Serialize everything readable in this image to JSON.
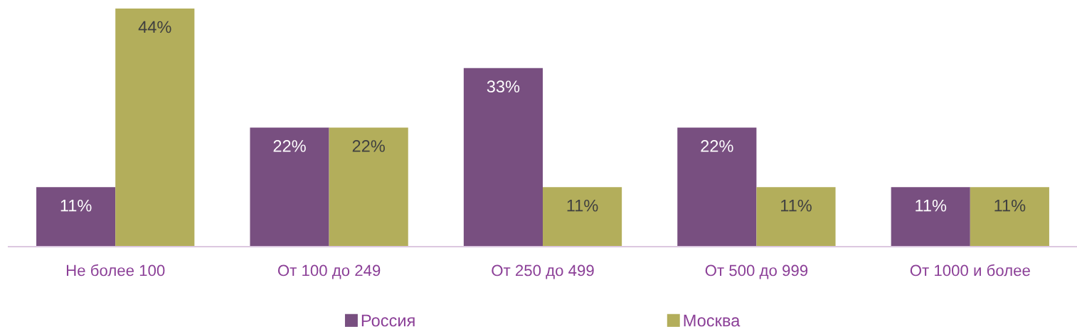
{
  "chart_data": {
    "type": "bar",
    "categories": [
      "Не более 100",
      "От 100 до 249",
      "От 250 до 499",
      "От 500 до 999",
      "От 1000 и более"
    ],
    "series": [
      {
        "name": "Россия",
        "color": "#784f80",
        "values": [
          11,
          22,
          33,
          22,
          11
        ],
        "value_labels": [
          "11%",
          "22%",
          "33%",
          "22%",
          "11%"
        ]
      },
      {
        "name": "Москва",
        "color": "#b3ae5b",
        "values": [
          44,
          22,
          11,
          11,
          11
        ],
        "value_labels": [
          "44%",
          "22%",
          "11%",
          "11%",
          "11%"
        ]
      }
    ],
    "legend": "bottom",
    "grid": false
  }
}
